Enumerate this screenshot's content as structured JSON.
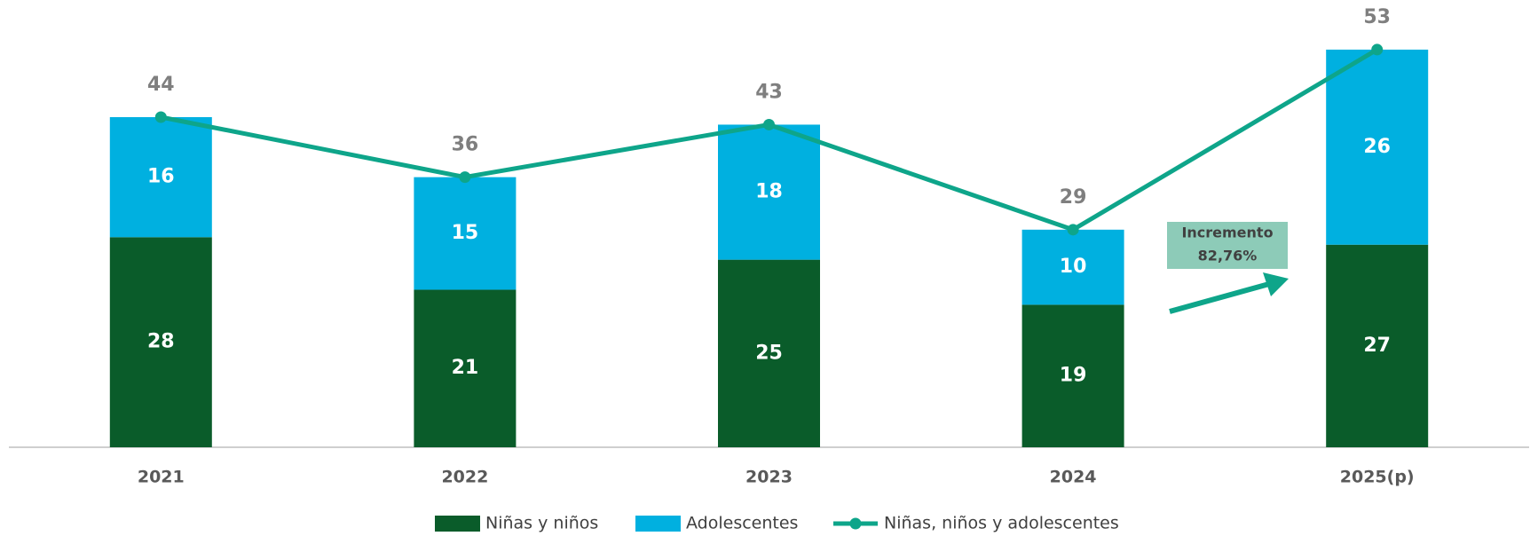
{
  "chart_data": {
    "type": "bar",
    "categories": [
      "2021",
      "2022",
      "2023",
      "2024",
      "2025(p)"
    ],
    "series": [
      {
        "name": "Niñas y niños",
        "color": "#0a5c2a",
        "values": [
          28,
          21,
          25,
          19,
          27
        ]
      },
      {
        "name": "Adolescentes",
        "color": "#00b0e0",
        "values": [
          16,
          15,
          18,
          10,
          26
        ]
      },
      {
        "name": "Niñas, niños y adolescentes",
        "color": "#0ea58a",
        "type": "line",
        "values": [
          44,
          36,
          43,
          29,
          53
        ]
      }
    ],
    "ylim": [
      0,
      55
    ],
    "legend": "bottom",
    "annotations": [
      "Incremento",
      "82,76%"
    ]
  }
}
